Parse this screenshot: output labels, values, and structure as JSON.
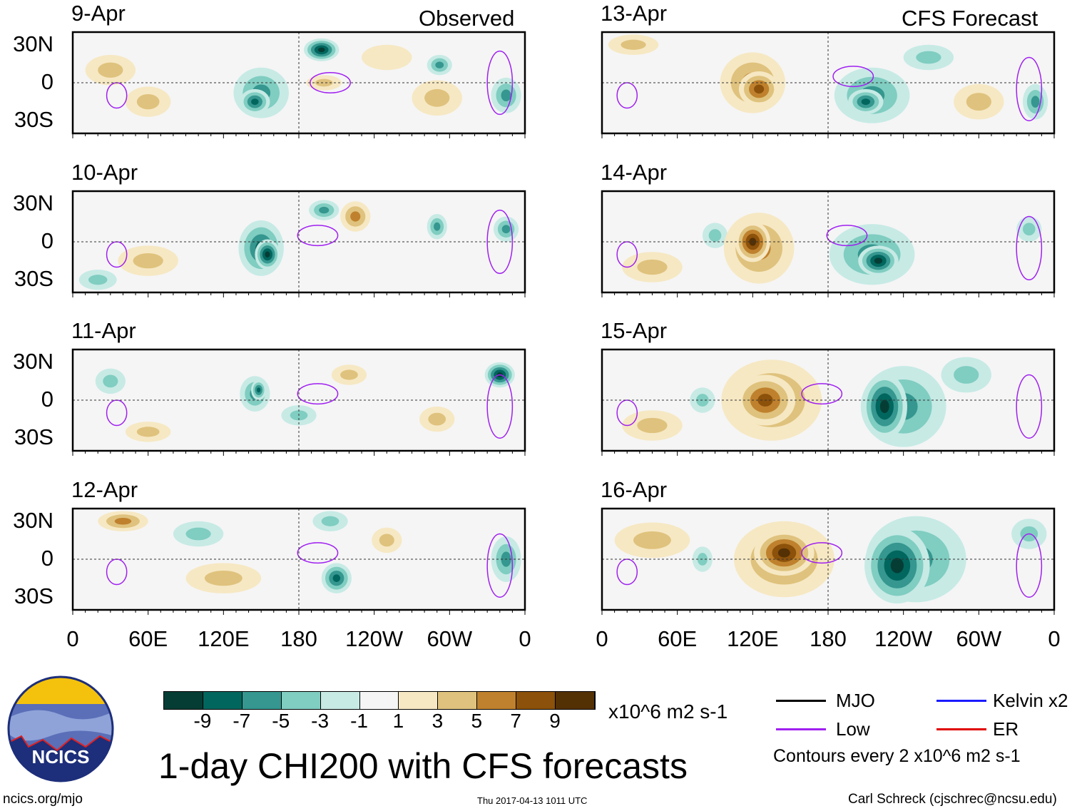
{
  "title": "1-day CHI200 with CFS forecasts",
  "headers": {
    "observed": "Observed",
    "forecast": "CFS Forecast"
  },
  "lat_ticks": [
    "30N",
    "0",
    "30S"
  ],
  "lon_ticks": [
    "0",
    "60E",
    "120E",
    "180",
    "120W",
    "60W",
    "0"
  ],
  "colorbar": {
    "unit": "x10^6 m2 s-1",
    "labels": [
      "-9",
      "-7",
      "-5",
      "-3",
      "-1",
      "1",
      "3",
      "5",
      "7",
      "9"
    ],
    "colors": [
      "#053d35",
      "#01665e",
      "#35978f",
      "#80cdc1",
      "#c7eae5",
      "#f5f5f5",
      "#f6e8c3",
      "#dfc27d",
      "#bf812d",
      "#8c510a",
      "#543005"
    ]
  },
  "legend": {
    "items": [
      {
        "label": "MJO",
        "color": "#000000"
      },
      {
        "label": "Kelvin x2",
        "color": "#1a1aff"
      },
      {
        "label": "Low",
        "color": "#a020f0"
      },
      {
        "label": "ER",
        "color": "#e00000"
      }
    ],
    "note": "Contours every 2 x10^6 m2 s-1"
  },
  "logo": {
    "text": "NCICS"
  },
  "footer": {
    "url": "ncics.org/mjo",
    "timestamp": "Thu 2017-04-13 1011 UTC",
    "author": "Carl Schreck (cjschrec@ncsu.edu)"
  },
  "chart_data": {
    "type": "heatmap",
    "variable": "CHI200 anomaly",
    "lon_range": [
      0,
      360
    ],
    "lat_range": [
      -40,
      40
    ],
    "panels": [
      {
        "date": "9-Apr",
        "kind": "observed",
        "anomalies": [
          [
            30,
            10,
            20,
            12,
            3
          ],
          [
            60,
            -15,
            18,
            12,
            3
          ],
          [
            150,
            -8,
            22,
            20,
            -5
          ],
          [
            145,
            -15,
            12,
            10,
            -7
          ],
          [
            198,
            26,
            14,
            9,
            -9
          ],
          [
            200,
            0,
            14,
            6,
            3
          ],
          [
            290,
            -12,
            20,
            14,
            3
          ],
          [
            292,
            14,
            10,
            8,
            -5
          ],
          [
            345,
            -10,
            12,
            14,
            -5
          ],
          [
            250,
            20,
            20,
            10,
            1
          ]
        ],
        "low": [
          [
            35,
            -10,
            8,
            10
          ],
          [
            205,
            0,
            16,
            8
          ],
          [
            340,
            0,
            10,
            25
          ]
        ]
      },
      {
        "date": "10-Apr",
        "kind": "observed",
        "anomalies": [
          [
            150,
            -5,
            18,
            22,
            -7
          ],
          [
            155,
            -10,
            10,
            12,
            -9
          ],
          [
            200,
            25,
            12,
            8,
            -5
          ],
          [
            225,
            20,
            12,
            12,
            5
          ],
          [
            60,
            -15,
            24,
            12,
            3
          ],
          [
            290,
            12,
            8,
            10,
            -5
          ],
          [
            345,
            10,
            10,
            10,
            -5
          ],
          [
            20,
            -30,
            15,
            8,
            -3
          ]
        ],
        "low": [
          [
            35,
            -10,
            8,
            10
          ],
          [
            195,
            5,
            16,
            8
          ],
          [
            340,
            0,
            10,
            25
          ]
        ]
      },
      {
        "date": "11-Apr",
        "kind": "observed",
        "anomalies": [
          [
            145,
            5,
            12,
            14,
            -5
          ],
          [
            148,
            8,
            6,
            8,
            -7
          ],
          [
            340,
            20,
            12,
            10,
            -9
          ],
          [
            220,
            20,
            14,
            8,
            3
          ],
          [
            60,
            -25,
            18,
            8,
            3
          ],
          [
            180,
            -12,
            14,
            8,
            -3
          ],
          [
            290,
            -15,
            14,
            10,
            3
          ],
          [
            30,
            15,
            12,
            10,
            -3
          ]
        ],
        "low": [
          [
            35,
            -10,
            8,
            10
          ],
          [
            195,
            5,
            16,
            8
          ],
          [
            340,
            -5,
            10,
            25
          ]
        ]
      },
      {
        "date": "12-Apr",
        "kind": "observed",
        "anomalies": [
          [
            40,
            30,
            20,
            8,
            5
          ],
          [
            120,
            -15,
            30,
            12,
            3
          ],
          [
            210,
            -15,
            12,
            12,
            -7
          ],
          [
            205,
            30,
            14,
            8,
            -3
          ],
          [
            345,
            0,
            12,
            18,
            -5
          ],
          [
            100,
            20,
            20,
            10,
            -3
          ],
          [
            250,
            15,
            12,
            10,
            3
          ]
        ],
        "low": [
          [
            35,
            -10,
            8,
            10
          ],
          [
            195,
            5,
            16,
            8
          ],
          [
            340,
            -5,
            10,
            25
          ]
        ]
      },
      {
        "date": "13-Apr",
        "kind": "forecast",
        "anomalies": [
          [
            120,
            0,
            26,
            24,
            5
          ],
          [
            125,
            -5,
            16,
            14,
            7
          ],
          [
            215,
            -10,
            30,
            22,
            -5
          ],
          [
            210,
            -15,
            14,
            10,
            -7
          ],
          [
            25,
            30,
            20,
            8,
            3
          ],
          [
            300,
            -15,
            20,
            14,
            3
          ],
          [
            345,
            -15,
            10,
            14,
            -5
          ],
          [
            260,
            20,
            20,
            10,
            -3
          ]
        ],
        "low": [
          [
            20,
            -10,
            8,
            10
          ],
          [
            200,
            5,
            16,
            8
          ],
          [
            340,
            -5,
            10,
            25
          ]
        ]
      },
      {
        "date": "14-Apr",
        "kind": "forecast",
        "anomalies": [
          [
            125,
            -5,
            28,
            28,
            5
          ],
          [
            120,
            0,
            14,
            16,
            9
          ],
          [
            215,
            -10,
            34,
            24,
            -5
          ],
          [
            220,
            -15,
            16,
            12,
            -9
          ],
          [
            40,
            -20,
            24,
            12,
            3
          ],
          [
            90,
            5,
            10,
            10,
            -3
          ],
          [
            340,
            10,
            10,
            10,
            -3
          ]
        ],
        "low": [
          [
            20,
            -10,
            8,
            10
          ],
          [
            195,
            5,
            16,
            8
          ],
          [
            340,
            -5,
            10,
            25
          ]
        ]
      },
      {
        "date": "15-Apr",
        "kind": "forecast",
        "anomalies": [
          [
            135,
            0,
            40,
            32,
            5
          ],
          [
            130,
            0,
            24,
            20,
            7
          ],
          [
            225,
            -5,
            18,
            26,
            -9
          ],
          [
            240,
            -5,
            34,
            32,
            -5
          ],
          [
            40,
            -20,
            24,
            12,
            3
          ],
          [
            80,
            0,
            10,
            10,
            -3
          ],
          [
            290,
            20,
            20,
            14,
            -3
          ]
        ],
        "low": [
          [
            20,
            -10,
            8,
            10
          ],
          [
            175,
            5,
            16,
            8
          ],
          [
            340,
            -5,
            10,
            25
          ]
        ]
      },
      {
        "date": "16-Apr",
        "kind": "forecast",
        "anomalies": [
          [
            145,
            0,
            40,
            30,
            5
          ],
          [
            145,
            5,
            24,
            18,
            9
          ],
          [
            235,
            -5,
            26,
            30,
            -9
          ],
          [
            250,
            0,
            40,
            34,
            -5
          ],
          [
            40,
            15,
            30,
            14,
            3
          ],
          [
            80,
            0,
            8,
            10,
            -3
          ],
          [
            340,
            20,
            14,
            12,
            -3
          ]
        ],
        "low": [
          [
            20,
            -10,
            8,
            10
          ],
          [
            175,
            5,
            16,
            8
          ],
          [
            340,
            -5,
            10,
            25
          ]
        ]
      }
    ]
  }
}
